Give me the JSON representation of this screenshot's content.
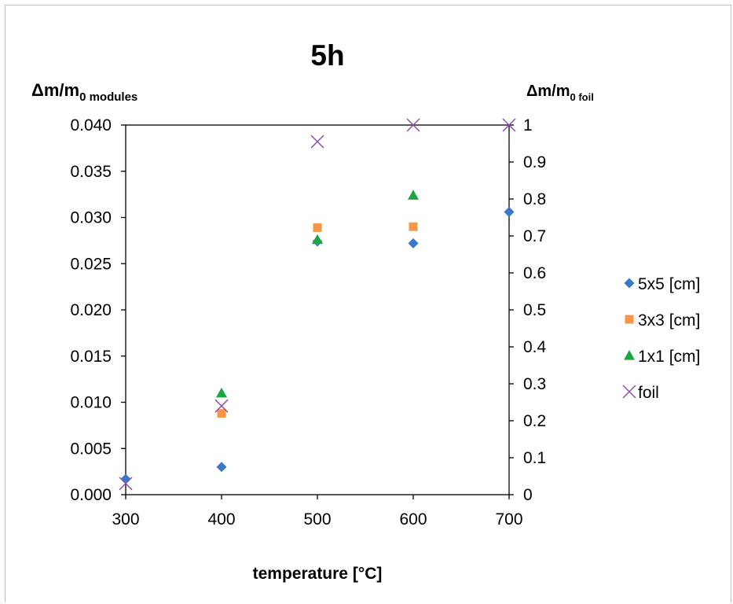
{
  "chart_data": {
    "type": "scatter",
    "title": "5h",
    "xlabel": "temperature [°C]",
    "ylabel_left": {
      "main": "Δm/m",
      "sub": "0 modules"
    },
    "ylabel_right": {
      "main": "Δm/m",
      "sub": "0 foil"
    },
    "xlim": [
      300,
      700
    ],
    "ylim_left": [
      0.0,
      0.04
    ],
    "ylim_right": [
      0,
      1
    ],
    "x_ticks": [
      "300",
      "400",
      "500",
      "600",
      "700"
    ],
    "y_left_ticks": [
      "0.000",
      "0.005",
      "0.010",
      "0.015",
      "0.020",
      "0.025",
      "0.030",
      "0.035",
      "0.040"
    ],
    "y_right_ticks": [
      "0",
      "0.1",
      "0.2",
      "0.3",
      "0.4",
      "0.5",
      "0.6",
      "0.7",
      "0.8",
      "0.9",
      "1"
    ],
    "grid": false,
    "legend_position": "right",
    "series": [
      {
        "name": "5x5 [cm]",
        "marker": "diamond",
        "color": "#3a78c8",
        "axis": "left",
        "points": [
          [
            300,
            0.0017
          ],
          [
            400,
            0.003
          ],
          [
            500,
            0.0274
          ],
          [
            600,
            0.0272
          ],
          [
            700,
            0.0306
          ]
        ]
      },
      {
        "name": "3x3 [cm]",
        "marker": "square",
        "color": "#f79646",
        "axis": "left",
        "points": [
          [
            400,
            0.0088
          ],
          [
            500,
            0.0289
          ],
          [
            600,
            0.029
          ]
        ]
      },
      {
        "name": "1x1 [cm]",
        "marker": "triangle",
        "color": "#1aa742",
        "axis": "left",
        "points": [
          [
            400,
            0.011
          ],
          [
            500,
            0.0276
          ],
          [
            600,
            0.0324
          ]
        ]
      },
      {
        "name": "foil",
        "marker": "x",
        "color": "#8d4fb0",
        "axis": "right",
        "points": [
          [
            300,
            0.03
          ],
          [
            400,
            0.24
          ],
          [
            500,
            0.955
          ],
          [
            600,
            1.0
          ],
          [
            700,
            1.0
          ]
        ]
      }
    ]
  }
}
